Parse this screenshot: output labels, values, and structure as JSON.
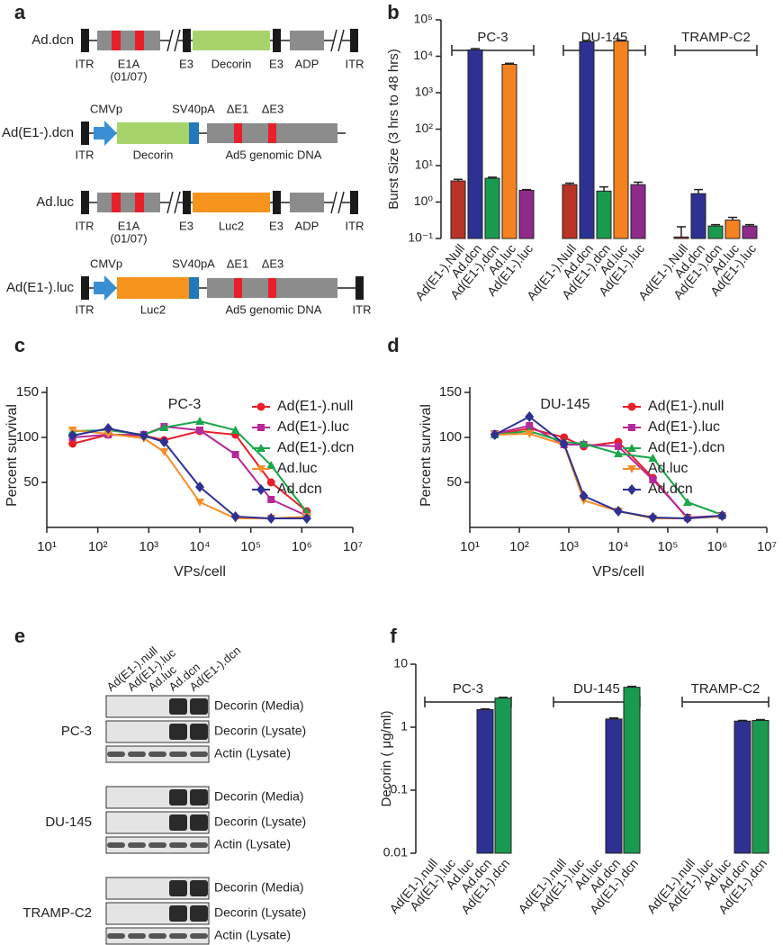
{
  "panel_a": {
    "panel_label": "a",
    "constructs": [
      {
        "name": "Ad.dcn",
        "labels": [
          "ITR",
          "E1A",
          "(01/07)",
          "E3",
          "Decorin",
          "E3",
          "ADP",
          "ITR"
        ]
      },
      {
        "name": "Ad(E1-).dcn",
        "labels": [
          "CMVp",
          "SV40pA",
          "ΔE1",
          "ΔE3",
          "ITR",
          "Decorin",
          "Ad5 genomic DNA"
        ]
      },
      {
        "name": "Ad.luc",
        "labels": [
          "ITR",
          "E1A",
          "(01/07)",
          "E3",
          "Luc2",
          "E3",
          "ADP",
          "ITR"
        ]
      },
      {
        "name": "Ad(E1-).luc",
        "labels": [
          "CMVp",
          "SV40pA",
          "ΔE1",
          "ΔE3",
          "ITR",
          "Luc2",
          "Ad5 genomic DNA",
          "ITR"
        ]
      }
    ]
  },
  "chart_data": [
    {
      "type": "bar",
      "panel_label": "b",
      "y_label": "Burst Size (3 hrs to 48 hrs)",
      "log_y": true,
      "categories": [
        "PC-3",
        "DU-145",
        "TRAMP-C2"
      ],
      "series": [
        {
          "name": "Ad(E1-).Null",
          "color": "#b83226",
          "values": [
            3.8,
            3.0,
            0.11
          ],
          "errors": [
            0.4,
            0.3,
            0.1
          ]
        },
        {
          "name": "Ad.dcn",
          "color": "#2e3192",
          "values": [
            15000,
            25000,
            1.7
          ],
          "errors": [
            1200,
            2000,
            0.5
          ]
        },
        {
          "name": "Ad(E1-).dcn",
          "color": "#1a9a50",
          "values": [
            4.5,
            2.0,
            0.22
          ],
          "errors": [
            0.3,
            0.6,
            0.02
          ]
        },
        {
          "name": "Ad.luc",
          "color": "#f58220",
          "values": [
            6000,
            26000,
            0.32
          ],
          "errors": [
            400,
            1500,
            0.06
          ]
        },
        {
          "name": "Ad(E1-).luc",
          "color": "#8e2a8c",
          "values": [
            2.1,
            3.0,
            0.22
          ],
          "errors": [
            0.1,
            0.5,
            0.02
          ]
        }
      ],
      "ylim": [
        0.1,
        100000
      ],
      "yticks": [
        {
          "value": 0.1,
          "label": "10⁻¹"
        },
        {
          "value": 1,
          "label": "10⁰"
        },
        {
          "value": 10,
          "label": "10¹"
        },
        {
          "value": 100,
          "label": "10²"
        },
        {
          "value": 1000,
          "label": "10³"
        },
        {
          "value": 10000,
          "label": "10⁴"
        },
        {
          "value": 100000,
          "label": "10⁵"
        }
      ]
    },
    {
      "type": "line",
      "panel_label": "c",
      "annotation": "PC-3",
      "x_label": "VPs/cell",
      "y_label": "Percent survival",
      "log_x": true,
      "x": [
        32,
        160,
        800,
        2000,
        10000,
        50000,
        250000,
        1250000
      ],
      "series": [
        {
          "name": "Ad(E1-).null",
          "color": "#e8202a",
          "marker": "circle",
          "values": [
            93,
            103,
            102,
            97,
            107,
            103,
            50,
            18
          ]
        },
        {
          "name": "Ad(E1-).luc",
          "color": "#b5289b",
          "marker": "square",
          "values": [
            100,
            103,
            103,
            112,
            108,
            81,
            31,
            13
          ]
        },
        {
          "name": "Ad(E1-).dcn",
          "color": "#1aa64a",
          "marker": "triangle",
          "values": [
            107,
            108,
            103,
            111,
            118,
            108,
            69,
            17
          ]
        },
        {
          "name": "Ad.luc",
          "color": "#f68e2b",
          "marker": "down-triangle",
          "values": [
            108,
            104,
            99,
            84,
            28,
            10,
            10,
            12
          ]
        },
        {
          "name": "Ad.dcn",
          "color": "#2e3192",
          "marker": "diamond",
          "values": [
            102,
            110,
            102,
            95,
            45,
            12,
            10,
            10
          ]
        }
      ],
      "xlim": [
        10,
        10000000
      ],
      "xticks": [
        {
          "value": 10,
          "label": "10¹"
        },
        {
          "value": 100,
          "label": "10²"
        },
        {
          "value": 1000,
          "label": "10³"
        },
        {
          "value": 10000,
          "label": "10⁴"
        },
        {
          "value": 100000,
          "label": "10⁵"
        },
        {
          "value": 1000000,
          "label": "10⁶"
        },
        {
          "value": 10000000,
          "label": "10⁷"
        }
      ],
      "ylim": [
        0,
        150
      ],
      "yticks": [
        50,
        100,
        150
      ]
    },
    {
      "type": "line",
      "panel_label": "d",
      "annotation": "DU-145",
      "x_label": "VPs/cell",
      "y_label": "Percent survival",
      "log_x": true,
      "x": [
        32,
        160,
        800,
        2000,
        10000,
        50000,
        250000,
        1250000
      ],
      "series": [
        {
          "name": "Ad(E1-).null",
          "color": "#e8202a",
          "marker": "circle",
          "values": [
            103,
            110,
            100,
            90,
            95,
            55,
            10,
            13
          ]
        },
        {
          "name": "Ad(E1-).luc",
          "color": "#b5289b",
          "marker": "square",
          "values": [
            104,
            113,
            92,
            92,
            90,
            53,
            11,
            13
          ]
        },
        {
          "name": "Ad(E1-).dcn",
          "color": "#1aa64a",
          "marker": "triangle",
          "values": [
            103,
            107,
            95,
            93,
            82,
            77,
            28,
            14
          ]
        },
        {
          "name": "Ad.luc",
          "color": "#f68e2b",
          "marker": "down-triangle",
          "values": [
            103,
            104,
            92,
            30,
            18,
            10,
            10,
            12
          ]
        },
        {
          "name": "Ad.dcn",
          "color": "#2e3192",
          "marker": "diamond",
          "values": [
            103,
            123,
            93,
            35,
            18,
            11,
            10,
            13
          ]
        }
      ],
      "xlim": [
        10,
        10000000
      ],
      "xticks": [
        {
          "value": 10,
          "label": "10¹"
        },
        {
          "value": 100,
          "label": "10²"
        },
        {
          "value": 1000,
          "label": "10³"
        },
        {
          "value": 10000,
          "label": "10⁴"
        },
        {
          "value": 100000,
          "label": "10⁵"
        },
        {
          "value": 1000000,
          "label": "10⁶"
        },
        {
          "value": 10000000,
          "label": "10⁷"
        }
      ],
      "ylim": [
        0,
        150
      ],
      "yticks": [
        50,
        100,
        150
      ]
    },
    {
      "type": "bar",
      "panel_label": "f",
      "y_label": "Decorin ( μg/ml)",
      "log_y": true,
      "categories": [
        "PC-3",
        "DU-145",
        "TRAMP-C2"
      ],
      "series": [
        {
          "name": "Ad(E1-).null",
          "values": [
            null,
            null,
            null
          ]
        },
        {
          "name": "Ad(E1-).luc",
          "values": [
            null,
            null,
            null
          ]
        },
        {
          "name": "Ad.luc",
          "values": [
            null,
            null,
            null
          ]
        },
        {
          "name": "Ad.dcn",
          "color": "#2e3192",
          "values": [
            1.9,
            1.35,
            1.25
          ],
          "errors": [
            0.05,
            0.05,
            0.03
          ]
        },
        {
          "name": "Ad(E1-).dcn",
          "color": "#1a9a50",
          "values": [
            2.9,
            4.3,
            1.28
          ],
          "errors": [
            0.08,
            0.15,
            0.04
          ]
        }
      ],
      "ylim": [
        0.01,
        10
      ],
      "yticks": [
        0.01,
        0.1,
        1,
        10
      ]
    }
  ],
  "panel_e": {
    "panel_label": "e",
    "samples": [
      "Ad(E1-).null",
      "Ad(E1-).luc",
      "Ad.luc",
      "Ad.dcn",
      "Ad(E1-).dcn"
    ],
    "blots": [
      {
        "cell_line": "PC-3",
        "rows": [
          "Decorin (Media)",
          "Decorin (Lysate)",
          "Actin (Lysate)"
        ]
      },
      {
        "cell_line": "DU-145",
        "rows": [
          "Decorin (Media)",
          "Decorin (Lysate)",
          "Actin (Lysate)"
        ]
      },
      {
        "cell_line": "TRAMP-C2",
        "rows": [
          "Decorin (Media)",
          "Decorin (Lysate)",
          "Actin (Lysate)"
        ]
      }
    ]
  }
}
